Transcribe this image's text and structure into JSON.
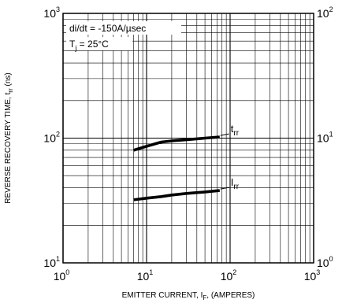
{
  "chart_data": {
    "type": "line",
    "xlabel": {
      "main": "EMITTER CURRENT, I",
      "sub": "F",
      "suffix": ", (AMPERES)"
    },
    "ylabel": {
      "main": "REVERSE RECOVERY TIME, t",
      "sub": "rr",
      "suffix": " (ns)"
    },
    "x_scale": "log",
    "y_scale": "log",
    "xlim": [
      1,
      1000
    ],
    "ylim_left": [
      10,
      1000
    ],
    "ylim_right": [
      1,
      100
    ],
    "x_ticks": [
      {
        "base": "10",
        "exp": "0"
      },
      {
        "base": "10",
        "exp": "1"
      },
      {
        "base": "10",
        "exp": "2"
      },
      {
        "base": "10",
        "exp": "3"
      }
    ],
    "y_ticks_left": [
      {
        "base": "10",
        "exp": "1"
      },
      {
        "base": "10",
        "exp": "2"
      },
      {
        "base": "10",
        "exp": "3"
      }
    ],
    "y_ticks_right": [
      {
        "base": "10",
        "exp": "0"
      },
      {
        "base": "10",
        "exp": "1"
      },
      {
        "base": "10",
        "exp": "2"
      }
    ],
    "grid": true,
    "annotations": [
      {
        "main": "di/dt = -150A/µsec",
        "sub": ""
      },
      {
        "main": "T",
        "sub": "j",
        "suffix": " = 25°C"
      }
    ],
    "series": [
      {
        "name": "trr_label",
        "label_main": "t",
        "label_sub": "rr",
        "axis": "left",
        "x": [
          7,
          10,
          15,
          20,
          30,
          50,
          75
        ],
        "y": [
          80,
          86,
          93,
          95,
          97,
          100,
          102
        ]
      },
      {
        "name": "irr_label",
        "label_main": "I",
        "label_sub": "rr",
        "axis": "right",
        "x": [
          7,
          10,
          15,
          20,
          30,
          50,
          75
        ],
        "y": [
          3.2,
          3.3,
          3.4,
          3.5,
          3.6,
          3.7,
          3.8
        ]
      }
    ],
    "colors": {
      "line": "#000000",
      "grid": "#000000",
      "background": "#ffffff"
    }
  }
}
